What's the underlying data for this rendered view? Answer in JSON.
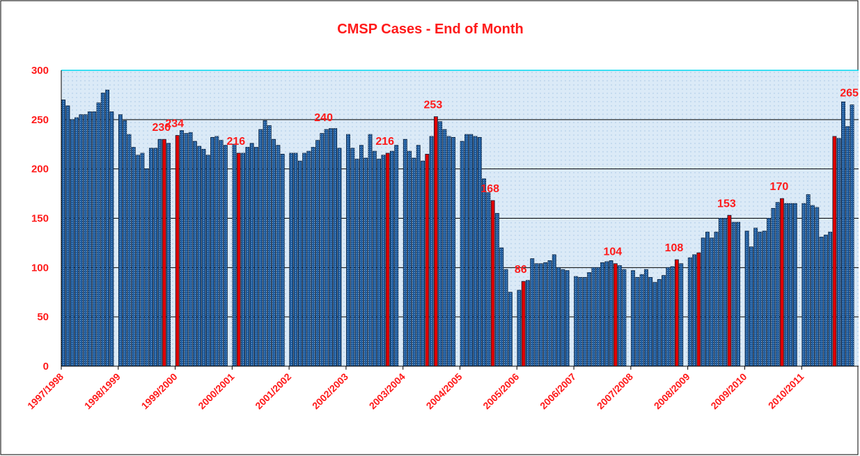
{
  "chart_data": {
    "type": "bar",
    "title": "CMSP Cases - End of Month",
    "categories": [
      "1997/1998",
      null,
      null,
      null,
      null,
      null,
      null,
      null,
      null,
      null,
      null,
      null,
      null,
      "1998/1999",
      null,
      null,
      null,
      null,
      null,
      null,
      null,
      null,
      null,
      null,
      null,
      null,
      "1999/2000",
      null,
      null,
      null,
      null,
      null,
      null,
      null,
      null,
      null,
      null,
      null,
      null,
      "2000/2001",
      null,
      null,
      null,
      null,
      null,
      null,
      null,
      null,
      null,
      null,
      null,
      null,
      "2001/2002",
      null,
      null,
      null,
      null,
      null,
      null,
      null,
      null,
      null,
      null,
      null,
      null,
      "2002/2003",
      null,
      null,
      null,
      null,
      null,
      null,
      null,
      null,
      null,
      null,
      null,
      null,
      "2003/2004",
      null,
      null,
      null,
      null,
      null,
      null,
      null,
      null,
      null,
      null,
      null,
      null,
      "2004/2005",
      null,
      null,
      null,
      null,
      null,
      null,
      null,
      null,
      null,
      null,
      null,
      null,
      "2005/2006",
      null,
      null,
      null,
      null,
      null,
      null,
      null,
      null,
      null,
      null,
      null,
      null,
      "2006/2007",
      null,
      null,
      null,
      null,
      null,
      null,
      null,
      null,
      null,
      null,
      null,
      null,
      "2007/2008",
      null,
      null,
      null,
      null,
      null,
      null,
      null,
      null,
      null,
      null,
      null,
      null,
      "2008/2009",
      null,
      null,
      null,
      null,
      null,
      null,
      null,
      null,
      null,
      null,
      null,
      null,
      "2009/2010",
      null,
      null,
      null,
      null,
      null,
      null,
      null,
      null,
      null,
      null,
      null,
      null,
      "2010/2011",
      null,
      null,
      null,
      null,
      null,
      null,
      null,
      null,
      null,
      null,
      null,
      null
    ],
    "series": [
      {
        "color": "#1f5c9e",
        "values": [
          270,
          264,
          250,
          252,
          255,
          255,
          258,
          258,
          267,
          277,
          280,
          258,
          null,
          255,
          249,
          235,
          222,
          214,
          216,
          200,
          221,
          221,
          230,
          null,
          226,
          null,
          null,
          239,
          236,
          237,
          228,
          223,
          220,
          214,
          232,
          233,
          229,
          224,
          null,
          225,
          null,
          216,
          222,
          226,
          222,
          240,
          249,
          244,
          230,
          224,
          215,
          null,
          216,
          216,
          208,
          216,
          218,
          222,
          229,
          236,
          240,
          241,
          241,
          221,
          null,
          235,
          221,
          210,
          224,
          211,
          235,
          218,
          210,
          214,
          null,
          218,
          224,
          null,
          230,
          218,
          211,
          224,
          208,
          null,
          233,
          null,
          248,
          240,
          233,
          232,
          null,
          228,
          235,
          235,
          233,
          232,
          190,
          176,
          null,
          155,
          120,
          98,
          75,
          null,
          77,
          null,
          87,
          109,
          104,
          104,
          105,
          107,
          113,
          100,
          98,
          97,
          null,
          91,
          90,
          90,
          95,
          100,
          100,
          105,
          106,
          107,
          null,
          102,
          98,
          null,
          97,
          90,
          93,
          98,
          90,
          85,
          88,
          92,
          100,
          101,
          null,
          104,
          null,
          110,
          113,
          null,
          130,
          136,
          130,
          136,
          150,
          150,
          null,
          146,
          146,
          null,
          137,
          121,
          140,
          136,
          137,
          150,
          160,
          166,
          null,
          165,
          165,
          165,
          null,
          165,
          174,
          163,
          161,
          131,
          133,
          136,
          null,
          231,
          268,
          243,
          265,
          null
        ],
        "value_labels": [
          null,
          null,
          null,
          null,
          null,
          null,
          null,
          null,
          null,
          null,
          null,
          null,
          null,
          null,
          null,
          null,
          null,
          null,
          null,
          null,
          null,
          null,
          null,
          null,
          null,
          null,
          null,
          null,
          null,
          null,
          null,
          null,
          null,
          null,
          null,
          null,
          null,
          null,
          null,
          null,
          null,
          null,
          null,
          null,
          null,
          null,
          null,
          null,
          null,
          null,
          null,
          null,
          null,
          null,
          null,
          null,
          null,
          null,
          null,
          null,
          "240",
          null,
          null,
          null,
          null,
          null,
          null,
          null,
          null,
          null,
          null,
          null,
          null,
          null,
          null,
          null,
          null,
          null,
          null,
          null,
          null,
          null,
          null,
          null,
          null,
          null,
          null,
          null,
          null,
          null,
          null,
          null,
          null,
          null,
          null,
          null,
          null,
          null,
          null,
          null,
          null,
          null,
          null,
          null,
          null,
          null,
          null,
          null,
          null,
          null,
          null,
          null,
          null,
          null,
          null,
          null,
          null,
          null,
          null,
          null,
          null,
          null,
          null,
          null,
          null,
          null,
          null,
          null,
          null,
          null,
          null,
          null,
          null,
          null,
          null,
          null,
          null,
          null,
          null,
          null,
          null,
          null,
          null,
          null,
          null,
          null,
          null,
          null,
          null,
          null,
          null,
          null,
          null,
          null,
          null,
          null,
          null,
          null,
          null,
          null,
          null,
          null,
          null,
          null,
          null,
          null,
          null,
          null,
          null,
          null,
          null,
          null,
          null,
          null,
          null,
          null,
          null,
          null,
          null,
          null,
          "265",
          null
        ]
      },
      {
        "color": "#e00000",
        "values": [
          null,
          null,
          null,
          null,
          null,
          null,
          null,
          null,
          null,
          null,
          null,
          null,
          null,
          null,
          null,
          null,
          null,
          null,
          null,
          null,
          null,
          null,
          null,
          230,
          null,
          null,
          234,
          null,
          null,
          null,
          null,
          null,
          null,
          null,
          null,
          null,
          null,
          null,
          null,
          null,
          216,
          null,
          null,
          null,
          null,
          null,
          null,
          null,
          null,
          null,
          null,
          null,
          null,
          null,
          null,
          null,
          null,
          null,
          null,
          null,
          null,
          null,
          null,
          null,
          null,
          null,
          null,
          null,
          null,
          null,
          null,
          null,
          null,
          null,
          216,
          null,
          null,
          null,
          null,
          null,
          null,
          null,
          null,
          215,
          null,
          253,
          null,
          null,
          null,
          null,
          null,
          null,
          null,
          null,
          null,
          null,
          null,
          null,
          168,
          null,
          null,
          null,
          null,
          null,
          null,
          86,
          null,
          null,
          null,
          null,
          null,
          null,
          null,
          null,
          null,
          null,
          null,
          null,
          null,
          null,
          null,
          null,
          null,
          null,
          null,
          null,
          104,
          null,
          null,
          null,
          null,
          null,
          null,
          null,
          null,
          null,
          null,
          null,
          null,
          null,
          108,
          null,
          null,
          null,
          null,
          115,
          null,
          null,
          null,
          null,
          null,
          null,
          153,
          null,
          null,
          null,
          null,
          null,
          null,
          null,
          null,
          null,
          null,
          null,
          170,
          null,
          null,
          null,
          null,
          null,
          null,
          null,
          null,
          null,
          null,
          null,
          233,
          null,
          null,
          null,
          null,
          null
        ],
        "value_labels": [
          null,
          null,
          null,
          null,
          null,
          null,
          null,
          null,
          null,
          null,
          null,
          null,
          null,
          null,
          null,
          null,
          null,
          null,
          null,
          null,
          null,
          null,
          null,
          "230",
          null,
          null,
          "234",
          null,
          null,
          null,
          null,
          null,
          null,
          null,
          null,
          null,
          null,
          null,
          null,
          null,
          "216",
          null,
          null,
          null,
          null,
          null,
          null,
          null,
          null,
          null,
          null,
          null,
          null,
          null,
          null,
          null,
          null,
          null,
          null,
          null,
          null,
          null,
          null,
          null,
          null,
          null,
          null,
          null,
          null,
          null,
          null,
          null,
          null,
          null,
          "216",
          null,
          null,
          null,
          null,
          null,
          null,
          null,
          null,
          null,
          null,
          "253",
          null,
          null,
          null,
          null,
          null,
          null,
          null,
          null,
          null,
          null,
          null,
          null,
          "168",
          null,
          null,
          null,
          null,
          null,
          null,
          "86",
          null,
          null,
          null,
          null,
          null,
          null,
          null,
          null,
          null,
          null,
          null,
          null,
          null,
          null,
          null,
          null,
          null,
          null,
          null,
          null,
          "104",
          null,
          null,
          null,
          null,
          null,
          null,
          null,
          null,
          null,
          null,
          null,
          null,
          null,
          "108",
          null,
          null,
          null,
          null,
          null,
          null,
          null,
          null,
          null,
          null,
          null,
          "153",
          null,
          null,
          null,
          null,
          null,
          null,
          null,
          null,
          null,
          null,
          null,
          "170",
          null,
          null,
          null,
          null,
          null,
          null,
          null,
          null,
          null,
          null,
          null,
          null,
          null,
          null,
          null,
          null,
          null
        ]
      }
    ],
    "ylim": [
      0,
      300
    ],
    "yticks": [
      0,
      50,
      100,
      150,
      200,
      250,
      300
    ],
    "grid": true
  }
}
